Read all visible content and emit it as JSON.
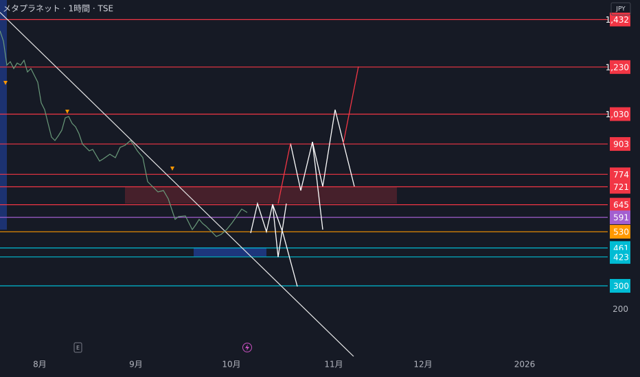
{
  "chart_data": {
    "type": "line",
    "title": "メタプラネット · 1時間 · TSE",
    "currency": "JPY",
    "ylim": [
      0,
      1515
    ],
    "yticks": [
      200
    ],
    "x_labels": [
      "8月",
      "9月",
      "10月",
      "11月",
      "12月",
      "2026"
    ],
    "markers": [
      "E"
    ],
    "levels": [
      {
        "value": 1432,
        "label": "1,432",
        "color": "#f23645"
      },
      {
        "value": 1230,
        "label": "1,230",
        "color": "#f23645"
      },
      {
        "value": 1030,
        "label": "1,030",
        "color": "#f23645"
      },
      {
        "value": 903,
        "color": "#f23645"
      },
      {
        "value": 774,
        "color": "#f23645"
      },
      {
        "value": 721,
        "color": "#f23645"
      },
      {
        "value": 645,
        "color": "#f23645"
      },
      {
        "value": 591,
        "color": "#a25fd0"
      },
      {
        "value": 530,
        "color": "#ff9800"
      },
      {
        "value": 461,
        "color": "#00bcd4"
      },
      {
        "value": 423,
        "color": "#00bcd4"
      },
      {
        "value": 300,
        "color": "#00bcd4"
      }
    ]
  }
}
